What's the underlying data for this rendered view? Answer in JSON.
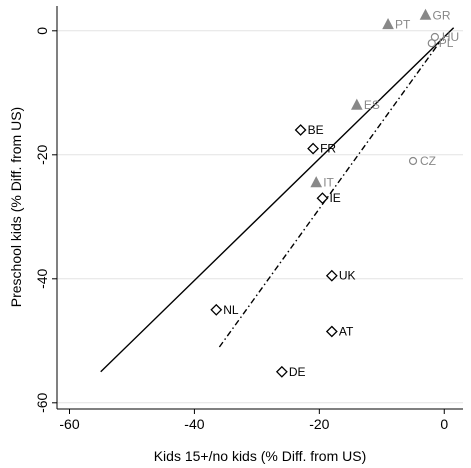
{
  "chart_data": {
    "type": "scatter",
    "xlabel": "Kids 15+/no kids (% Diff. from US)",
    "ylabel": "Preschool kids (% Diff. from US)",
    "xlim": [
      -62,
      3
    ],
    "ylim": [
      -61,
      4
    ],
    "x_ticks": [
      "-60",
      "-40",
      "-20",
      "0"
    ],
    "y_ticks": [
      "0",
      "-20",
      "-40",
      "-60"
    ],
    "x_tick_values": [
      -60,
      -40,
      -20,
      0
    ],
    "y_tick_values": [
      0,
      -20,
      -40,
      -60
    ],
    "grid": "horizontal",
    "series": [
      {
        "marker": "diamond",
        "color": "#000000",
        "points": [
          {
            "label": "BE",
            "x": -23,
            "y": -16
          },
          {
            "label": "FR",
            "x": -21,
            "y": -19
          },
          {
            "label": "IE",
            "x": -19.5,
            "y": -27
          },
          {
            "label": "UK",
            "x": -18,
            "y": -39.5
          },
          {
            "label": "NL",
            "x": -36.5,
            "y": -45
          },
          {
            "label": "AT",
            "x": -18,
            "y": -48.5
          },
          {
            "label": "DE",
            "x": -26,
            "y": -55
          }
        ]
      },
      {
        "marker": "triangle",
        "color": "#888888",
        "points": [
          {
            "label": "GR",
            "x": -3,
            "y": 2.5
          },
          {
            "label": "PT",
            "x": -9,
            "y": 1
          },
          {
            "label": "ES",
            "x": -14,
            "y": -12
          },
          {
            "label": "IT",
            "x": -20.5,
            "y": -24.5
          }
        ]
      },
      {
        "marker": "circle",
        "color": "#888888",
        "points": [
          {
            "label": "HU",
            "x": -1.5,
            "y": -1
          },
          {
            "label": "PL",
            "x": -2,
            "y": -2
          },
          {
            "label": "CZ",
            "x": -5,
            "y": -21
          }
        ]
      }
    ],
    "lines": [
      {
        "style": "solid",
        "x": [
          -55,
          1.5
        ],
        "y": [
          -55,
          0.5
        ]
      },
      {
        "style": "dash-dot",
        "x": [
          -36,
          -0.5
        ],
        "y": [
          -51,
          -1.5
        ]
      }
    ]
  }
}
